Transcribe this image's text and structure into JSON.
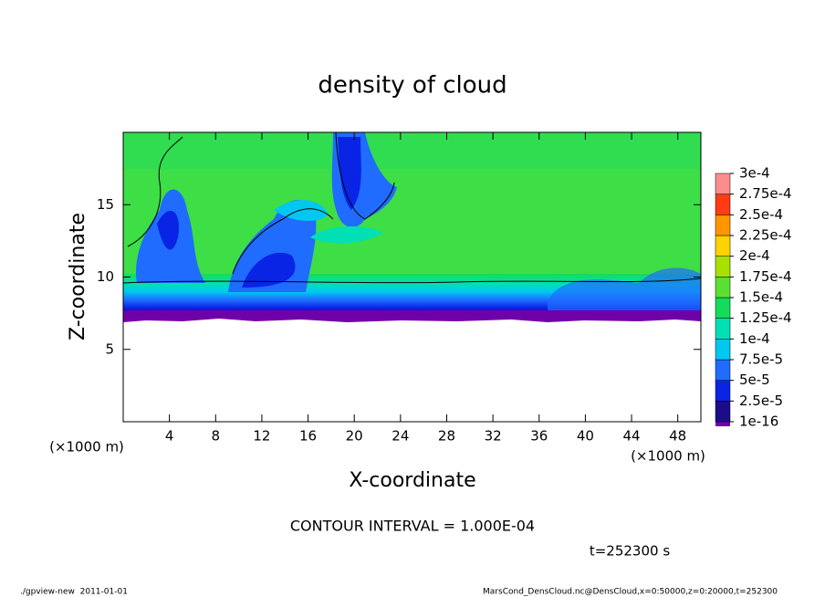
{
  "chart_data": {
    "type": "contour",
    "title": "density of cloud",
    "x_label": "X-coordinate",
    "y_label": "Z-coordinate",
    "x_unit_label": "(×1000 m)",
    "y_unit_label": "(×1000 m)",
    "xlim": [
      0,
      50
    ],
    "ylim": [
      0,
      20
    ],
    "xticks": [
      4,
      8,
      12,
      16,
      20,
      24,
      28,
      32,
      36,
      40,
      44,
      48
    ],
    "yticks": [
      5,
      10,
      15
    ],
    "colorbar": {
      "levels": [
        {
          "value": 1e-16,
          "label": "1e-16"
        },
        {
          "value": 2.5e-05,
          "label": "2.5e-5"
        },
        {
          "value": 5e-05,
          "label": "5e-5"
        },
        {
          "value": 7.5e-05,
          "label": "7.5e-5"
        },
        {
          "value": 0.0001,
          "label": "1e-4"
        },
        {
          "value": 0.000125,
          "label": "1.25e-4"
        },
        {
          "value": 0.00015,
          "label": "1.5e-4"
        },
        {
          "value": 0.000175,
          "label": "1.75e-4"
        },
        {
          "value": 0.0002,
          "label": "2e-4"
        },
        {
          "value": 0.000225,
          "label": "2.25e-4"
        },
        {
          "value": 0.00025,
          "label": "2.5e-4"
        },
        {
          "value": 0.000275,
          "label": "2.75e-4"
        },
        {
          "value": 0.0003,
          "label": "3e-4"
        }
      ],
      "colors": [
        "#1c0c8c",
        "#0a24e6",
        "#1f6cff",
        "#00c8f0",
        "#00e0b4",
        "#14dc5a",
        "#5ae032",
        "#a8e000",
        "#ffd200",
        "#ff9600",
        "#ff3c14",
        "#ff8c8c"
      ]
    },
    "contour_interval_label": "CONTOUR INTERVAL = 1.000E-04",
    "time_label": "t=252300 s"
  },
  "footer": {
    "left": "./gpview-new  2011-01-01",
    "right": "MarsCond_DensCloud.nc@DensCloud,x=0:50000,z=0:20000,t=252300"
  }
}
